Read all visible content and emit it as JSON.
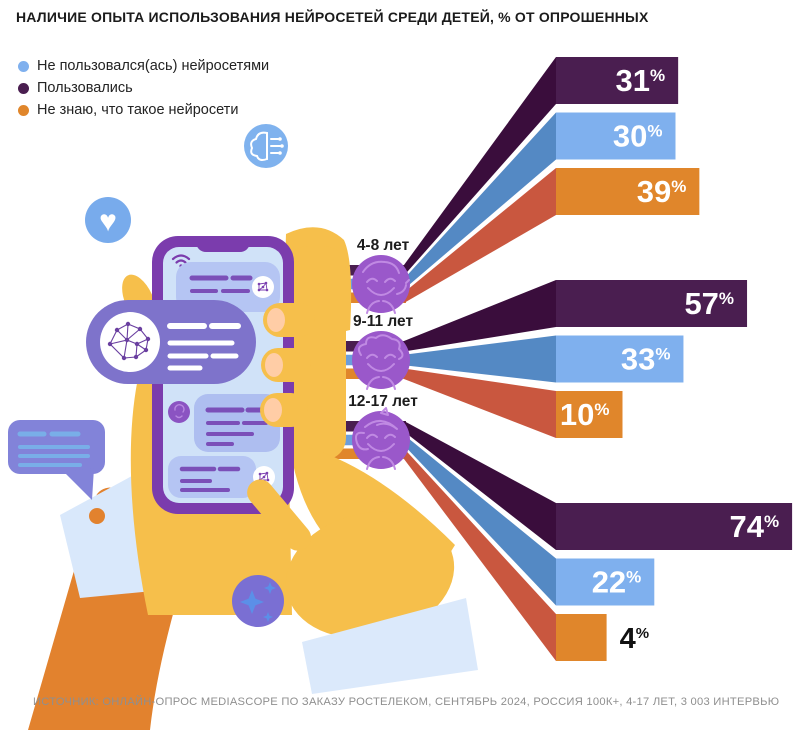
{
  "title": "НАЛИЧИЕ ОПЫТА ИСПОЛЬЗОВАНИЯ НЕЙРОСЕТЕЙ СРЕДИ ДЕТЕЙ, % ОТ ОПРОШЕННЫХ",
  "legend": {
    "items": [
      {
        "label": "Не пользовался(ась) нейросетями",
        "color": "#7fb0ee"
      },
      {
        "label": "Пользовались",
        "color": "#4a1e50"
      },
      {
        "label": "Не знаю, что такое нейросети",
        "color": "#e0862b"
      }
    ]
  },
  "chart_data": {
    "type": "bar",
    "orientation": "horizontal-fan",
    "unit": "%",
    "title": "Наличие опыта использования нейросетей среди детей, % от опрошенных",
    "categories": [
      "4-8 лет",
      "9-11 лет",
      "12-17 лет"
    ],
    "series": [
      {
        "name": "Пользовались",
        "color": "#4a1e50",
        "ribbon_color": "#3a0d3c",
        "stub_color": "#4a1e50",
        "values": [
          31,
          57,
          74
        ]
      },
      {
        "name": "Не пользовался(ась) нейросетями",
        "color": "#7fb0ee",
        "ribbon_color": "#5489c4",
        "stub_color": "#6b9ddb",
        "values": [
          30,
          33,
          22
        ]
      },
      {
        "name": "Не знаю, что такое нейросети",
        "color": "#e0862b",
        "ribbon_color": "#c9573f",
        "stub_color": "#e0862b",
        "values": [
          39,
          10,
          4
        ]
      }
    ],
    "xlim": [
      0,
      100
    ],
    "legend_position": "top-left",
    "value_label_inside_color": "#ffffff",
    "value_label_outside_color": "#111111",
    "grid": false
  },
  "icons": {
    "heart_icon": "♥",
    "ai_brain_icon": "brain-chip-in-circle",
    "sparkle_icon": "four-point-stars-in-circle",
    "wifi_icon": "wifi-arcs",
    "brain_network_icon": "polygon-network-brain",
    "avatar_icons": [
      "boy-4-8",
      "boy-curly-9-11",
      "girl-12-17"
    ]
  },
  "source": "ИСТОЧНИК: ОНЛАЙН-ОПРОС MEDIASCOPE ПО ЗАКАЗУ РОСТЕЛЕКОМ, СЕНТЯБРЬ 2024, РОССИЯ 100К+, 4-17 ЛЕТ, 3 003 ИНТЕРВЬЮ"
}
